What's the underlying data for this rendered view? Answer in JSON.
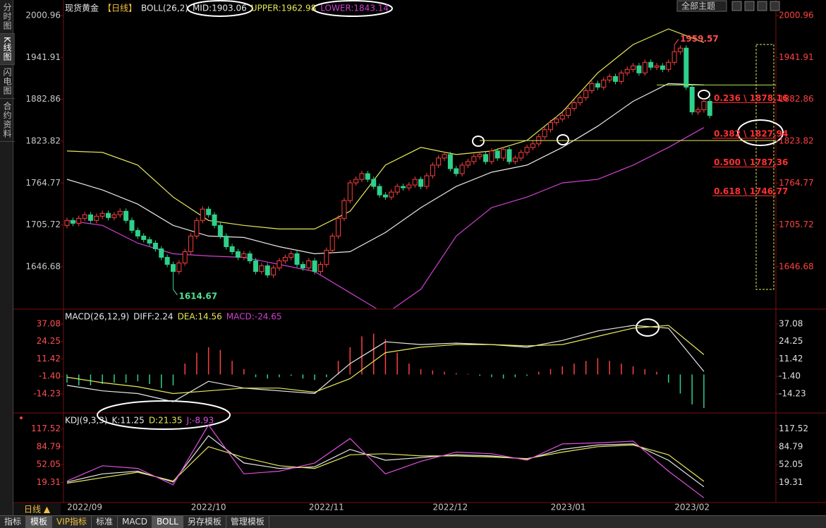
{
  "ui": {
    "sidebar": [
      "分时图",
      "K线图",
      "闪电图",
      "合约资料"
    ],
    "theme": "全部主题",
    "period_tab": "日线 ▲",
    "tabs": [
      "指标",
      "模板",
      "VIP指标",
      "标准",
      "MACD",
      "BOLL",
      "另存模板",
      "管理模板"
    ]
  },
  "chart_data": [
    {
      "type": "candlestick",
      "title": "现货黄金",
      "period": "【日线】",
      "indicator": "BOLL(26,2)",
      "up_color": "#ff4040",
      "down_color": "#2ed08a",
      "ylim": [
        1587.9,
        2012.9
      ],
      "yticks": [
        2000.96,
        1941.91,
        1882.86,
        1823.82,
        1764.77,
        1705.72,
        1646.68
      ],
      "open": [
        1705,
        1712,
        1708,
        1715,
        1720,
        1712,
        1718,
        1722,
        1716,
        1720,
        1725,
        1712,
        1698,
        1690,
        1685,
        1680,
        1672,
        1660,
        1650,
        1640,
        1652,
        1668,
        1690,
        1712,
        1728,
        1720,
        1705,
        1690,
        1675,
        1668,
        1660,
        1665,
        1655,
        1640,
        1648,
        1635,
        1645,
        1655,
        1660,
        1665,
        1650,
        1645,
        1655,
        1640,
        1650,
        1670,
        1690,
        1715,
        1740,
        1765,
        1770,
        1778,
        1770,
        1760,
        1748,
        1745,
        1752,
        1760,
        1758,
        1762,
        1770,
        1760,
        1775,
        1790,
        1800,
        1805,
        1785,
        1778,
        1790,
        1795,
        1802,
        1805,
        1795,
        1810,
        1800,
        1812,
        1795,
        1800,
        1808,
        1815,
        1820,
        1830,
        1840,
        1850,
        1855,
        1860,
        1870,
        1878,
        1885,
        1895,
        1905,
        1900,
        1910,
        1915,
        1908,
        1920,
        1925,
        1930,
        1920,
        1935,
        1928,
        1930,
        1925,
        1935,
        1950,
        1955,
        1900,
        1865,
        1868,
        1880
      ],
      "high": [
        1716,
        1716,
        1719,
        1724,
        1724,
        1722,
        1726,
        1726,
        1724,
        1729,
        1729,
        1716,
        1702,
        1694,
        1689,
        1684,
        1676,
        1664,
        1654,
        1656,
        1672,
        1694,
        1716,
        1732,
        1732,
        1724,
        1709,
        1694,
        1679,
        1672,
        1669,
        1669,
        1659,
        1652,
        1652,
        1649,
        1659,
        1664,
        1669,
        1669,
        1654,
        1659,
        1659,
        1654,
        1674,
        1694,
        1719,
        1744,
        1769,
        1774,
        1782,
        1782,
        1774,
        1764,
        1752,
        1756,
        1764,
        1764,
        1766,
        1774,
        1774,
        1779,
        1794,
        1804,
        1809,
        1809,
        1789,
        1794,
        1799,
        1806,
        1809,
        1809,
        1814,
        1814,
        1816,
        1816,
        1804,
        1812,
        1819,
        1824,
        1834,
        1844,
        1854,
        1859,
        1864,
        1874,
        1882,
        1889,
        1899,
        1909,
        1909,
        1914,
        1919,
        1919,
        1924,
        1929,
        1934,
        1934,
        1939,
        1939,
        1934,
        1934,
        1939,
        1959.57,
        1959,
        1959,
        1904,
        1872,
        1884,
        1884
      ],
      "low": [
        1701,
        1704,
        1704,
        1711,
        1708,
        1708,
        1714,
        1712,
        1712,
        1716,
        1708,
        1694,
        1686,
        1681,
        1676,
        1668,
        1656,
        1646,
        1614.67,
        1636,
        1648,
        1664,
        1686,
        1708,
        1716,
        1701,
        1686,
        1671,
        1664,
        1656,
        1656,
        1651,
        1636,
        1636,
        1631,
        1631,
        1641,
        1651,
        1656,
        1646,
        1641,
        1641,
        1636,
        1636,
        1646,
        1666,
        1686,
        1711,
        1736,
        1761,
        1766,
        1766,
        1756,
        1744,
        1741,
        1741,
        1748,
        1754,
        1754,
        1758,
        1756,
        1756,
        1771,
        1786,
        1796,
        1781,
        1774,
        1774,
        1786,
        1791,
        1798,
        1791,
        1791,
        1796,
        1796,
        1791,
        1791,
        1796,
        1804,
        1811,
        1816,
        1826,
        1836,
        1846,
        1851,
        1856,
        1866,
        1874,
        1881,
        1891,
        1896,
        1896,
        1906,
        1904,
        1904,
        1916,
        1921,
        1916,
        1916,
        1924,
        1924,
        1921,
        1921,
        1931,
        1946,
        1896,
        1861,
        1861,
        1864,
        1856
      ],
      "close": [
        1712,
        1708,
        1715,
        1720,
        1712,
        1718,
        1722,
        1716,
        1720,
        1725,
        1712,
        1698,
        1690,
        1685,
        1680,
        1672,
        1660,
        1650,
        1640,
        1652,
        1668,
        1690,
        1712,
        1728,
        1720,
        1705,
        1690,
        1675,
        1668,
        1660,
        1665,
        1655,
        1640,
        1648,
        1635,
        1645,
        1655,
        1660,
        1665,
        1650,
        1645,
        1655,
        1640,
        1650,
        1670,
        1690,
        1715,
        1740,
        1765,
        1770,
        1778,
        1770,
        1760,
        1748,
        1745,
        1752,
        1760,
        1758,
        1762,
        1770,
        1760,
        1775,
        1790,
        1800,
        1805,
        1785,
        1778,
        1790,
        1795,
        1802,
        1805,
        1795,
        1810,
        1800,
        1812,
        1795,
        1800,
        1808,
        1815,
        1820,
        1830,
        1840,
        1850,
        1855,
        1860,
        1870,
        1878,
        1885,
        1895,
        1905,
        1900,
        1910,
        1915,
        1908,
        1920,
        1925,
        1930,
        1920,
        1935,
        1928,
        1930,
        1925,
        1935,
        1950,
        1955,
        1900,
        1865,
        1868,
        1880,
        1860
      ],
      "series": [
        {
          "name": "MID:1903.06",
          "color": "#e8e8e8",
          "x": [
            0,
            6,
            12,
            18,
            24,
            30,
            36,
            42,
            48,
            54,
            60,
            66,
            72,
            78,
            84,
            90,
            96,
            102,
            108
          ],
          "values": [
            1770,
            1755,
            1735,
            1705,
            1690,
            1688,
            1675,
            1665,
            1668,
            1695,
            1730,
            1760,
            1780,
            1790,
            1815,
            1845,
            1880,
            1905,
            1903
          ]
        },
        {
          "name": "UPPER:1962.98",
          "color": "#e8e85a",
          "x": [
            0,
            6,
            12,
            18,
            24,
            30,
            36,
            42,
            48,
            54,
            60,
            66,
            72,
            78,
            84,
            90,
            96,
            102,
            108
          ],
          "values": [
            1810,
            1808,
            1790,
            1745,
            1712,
            1705,
            1700,
            1700,
            1725,
            1790,
            1815,
            1805,
            1810,
            1825,
            1865,
            1920,
            1960,
            1982,
            1963
          ]
        },
        {
          "name": "LOWER:1843.14",
          "color": "#d040d0",
          "x": [
            0,
            6,
            12,
            18,
            24,
            30,
            36,
            42,
            48,
            54,
            60,
            66,
            72,
            78,
            84,
            90,
            96,
            102,
            108
          ],
          "values": [
            1712,
            1705,
            1680,
            1665,
            1662,
            1660,
            1650,
            1640,
            1610,
            1580,
            1615,
            1690,
            1730,
            1745,
            1765,
            1770,
            1790,
            1815,
            1843
          ]
        }
      ],
      "annotations": [
        {
          "x": 103,
          "value": 1959.57,
          "color": "#ff5050"
        },
        {
          "x": 18,
          "value": 1614.67,
          "color": "#50e090"
        }
      ],
      "fib": [
        {
          "label": "0.236 \\ 1878.16",
          "value": 1878.16
        },
        {
          "label": "0.382 \\ 1827.94",
          "value": 1827.94
        },
        {
          "label": "0.500 \\ 1787.36",
          "value": 1787.36
        },
        {
          "label": "0.618 \\ 1746.77",
          "value": 1746.77
        }
      ],
      "hlines": [
        {
          "value": 1824.6,
          "x": 70,
          "color": "#e8e85a"
        },
        {
          "value": 1903,
          "x": 100,
          "color": "#b8e85a"
        }
      ]
    },
    {
      "type": "line",
      "title": "MACD(26,12,9)",
      "ylim": [
        -27.2,
        46.9
      ],
      "yticks": [
        37.08,
        24.25,
        11.42,
        {
          "value": -1.4,
          "label": "-1.40"
        },
        -14.23
      ],
      "series": [
        {
          "name": "DIFF:2.24",
          "color": "#e8e8e8",
          "x": [
            0,
            6,
            12,
            18,
            24,
            30,
            36,
            42,
            48,
            54,
            60,
            66,
            72,
            78,
            84,
            90,
            96,
            102,
            108
          ],
          "values": [
            -8,
            -12,
            -14,
            -20,
            -5,
            -10,
            -12,
            -14,
            8,
            24,
            22,
            23,
            22,
            20,
            25,
            32,
            36,
            34,
            2.24
          ]
        },
        {
          "name": "DEA:14.56",
          "color": "#e8e85a",
          "x": [
            0,
            6,
            12,
            18,
            24,
            30,
            36,
            42,
            48,
            54,
            60,
            66,
            72,
            78,
            84,
            90,
            96,
            102,
            108
          ],
          "values": [
            -2,
            -6,
            -9,
            -14,
            -12,
            -10,
            -10,
            -13,
            -3,
            16,
            20,
            22,
            22,
            21,
            22,
            28,
            34,
            36,
            14.56
          ]
        }
      ],
      "histogram": {
        "name": "MACD:-24.65",
        "color": "#d040d0",
        "up_color": "#ff4040",
        "down_color": "#2ed08a",
        "x": [
          0,
          2,
          4,
          6,
          8,
          10,
          12,
          14,
          16,
          18,
          20,
          22,
          24,
          26,
          28,
          30,
          32,
          34,
          36,
          38,
          40,
          42,
          44,
          46,
          48,
          50,
          52,
          54,
          56,
          58,
          60,
          62,
          64,
          66,
          68,
          70,
          72,
          74,
          76,
          78,
          80,
          82,
          84,
          86,
          88,
          90,
          92,
          94,
          96,
          98,
          100,
          102,
          104,
          106,
          108
        ],
        "values": [
          -6,
          -8,
          -8,
          -7,
          -6,
          -6,
          -5,
          -7,
          -10,
          -8,
          8,
          16,
          20,
          18,
          10,
          4,
          -2,
          -3,
          -2,
          -1,
          -3,
          -4,
          -2,
          10,
          20,
          28,
          30,
          26,
          16,
          8,
          4,
          3,
          2,
          1,
          0.5,
          -1,
          -2,
          -3,
          -2,
          -1,
          2,
          4,
          6,
          8,
          10,
          12,
          10,
          8,
          6,
          4,
          2,
          -6,
          -14,
          -22,
          -24.65
        ]
      }
    },
    {
      "type": "line",
      "title": "KDJ(9,3,3)",
      "ylim": [
        -15.1,
        144.3
      ],
      "yticks": [
        117.52,
        84.79,
        52.05,
        19.31
      ],
      "series": [
        {
          "name": "K:11.25",
          "color": "#e8e8e8",
          "x": [
            0,
            6,
            12,
            18,
            24,
            30,
            36,
            42,
            48,
            54,
            60,
            66,
            72,
            78,
            84,
            90,
            96,
            102,
            108
          ],
          "values": [
            20,
            35,
            40,
            20,
            105,
            55,
            45,
            48,
            80,
            60,
            65,
            70,
            68,
            62,
            80,
            88,
            90,
            60,
            11.25
          ]
        },
        {
          "name": "D:21.35",
          "color": "#e8e85a",
          "x": [
            0,
            6,
            12,
            18,
            24,
            30,
            36,
            42,
            48,
            54,
            60,
            66,
            72,
            78,
            84,
            90,
            96,
            102,
            108
          ],
          "values": [
            18,
            28,
            38,
            22,
            85,
            65,
            50,
            45,
            70,
            72,
            68,
            68,
            66,
            63,
            75,
            85,
            88,
            70,
            21.35
          ]
        },
        {
          "name": "J:-8.93",
          "color": "#e050e0",
          "x": [
            0,
            6,
            12,
            18,
            24,
            30,
            36,
            42,
            48,
            54,
            60,
            66,
            72,
            78,
            84,
            90,
            96,
            102,
            108
          ],
          "values": [
            22,
            50,
            45,
            15,
            125,
            35,
            40,
            55,
            100,
            35,
            58,
            75,
            72,
            60,
            90,
            92,
            95,
            40,
            -8.93
          ]
        }
      ],
      "xticks": [
        {
          "value": 3,
          "label": "2022/09"
        },
        {
          "value": 24,
          "label": "2022/10"
        },
        {
          "value": 44,
          "label": "2022/11"
        },
        {
          "value": 65,
          "label": "2022/12"
        },
        {
          "value": 85,
          "label": "2023/01"
        },
        {
          "value": 106,
          "label": "2023/02"
        }
      ]
    }
  ]
}
